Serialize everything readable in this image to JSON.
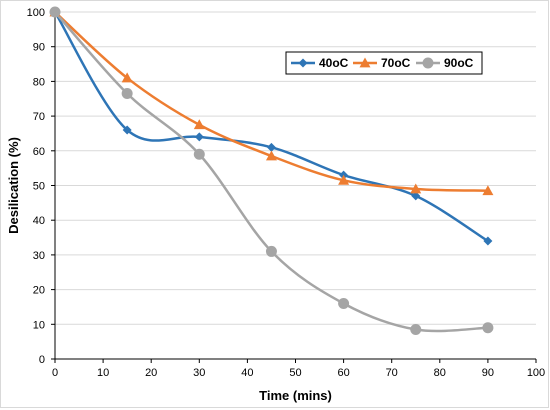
{
  "chart_data": {
    "type": "line",
    "title": "",
    "xlabel": "Time (mins)",
    "ylabel": "Desilication (%)",
    "xlim": [
      0,
      100
    ],
    "ylim": [
      0,
      100
    ],
    "xticks": [
      0,
      10,
      20,
      30,
      40,
      50,
      60,
      70,
      80,
      90,
      100
    ],
    "yticks": [
      0,
      10,
      20,
      30,
      40,
      50,
      60,
      70,
      80,
      90,
      100
    ],
    "grid": true,
    "smooth": true,
    "legend_position": "top-right",
    "series": [
      {
        "name": "40oC",
        "color": "#2e75b6",
        "marker": "diamond",
        "x": [
          0,
          15,
          30,
          45,
          60,
          75,
          90
        ],
        "y": [
          100,
          66,
          64,
          61,
          53,
          47,
          34
        ]
      },
      {
        "name": "70oC",
        "color": "#ed7d31",
        "marker": "triangle",
        "x": [
          0,
          15,
          30,
          45,
          60,
          75,
          90
        ],
        "y": [
          100,
          81,
          67.5,
          58.5,
          51.5,
          49,
          48.5
        ]
      },
      {
        "name": "90oC",
        "color": "#a5a5a5",
        "marker": "circle",
        "x": [
          0,
          15,
          30,
          45,
          60,
          75,
          90
        ],
        "y": [
          100,
          76.5,
          59,
          31,
          16,
          8.5,
          9
        ]
      }
    ]
  }
}
